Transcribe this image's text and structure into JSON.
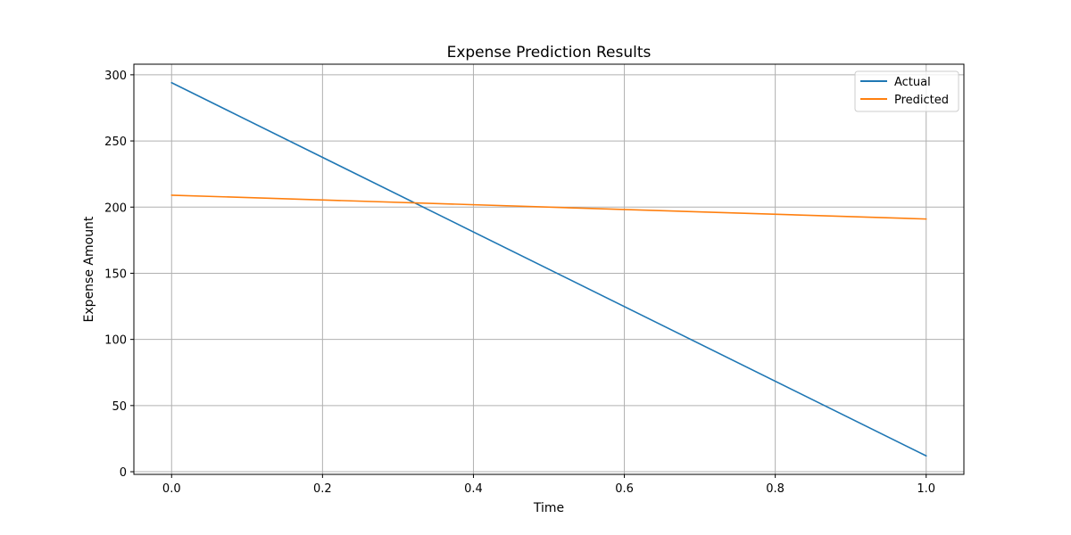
{
  "chart_data": {
    "type": "line",
    "title": "Expense Prediction Results",
    "xlabel": "Time",
    "ylabel": "Expense Amount",
    "xlim": [
      -0.05,
      1.05
    ],
    "ylim": [
      -2,
      308
    ],
    "xticks": [
      0.0,
      0.2,
      0.4,
      0.6,
      0.8,
      1.0
    ],
    "xtick_labels": [
      "0.0",
      "0.2",
      "0.4",
      "0.6",
      "0.8",
      "1.0"
    ],
    "yticks": [
      0,
      50,
      100,
      150,
      200,
      250,
      300
    ],
    "ytick_labels": [
      "0",
      "50",
      "100",
      "150",
      "200",
      "250",
      "300"
    ],
    "grid": true,
    "legend_position": "top-right",
    "series": [
      {
        "name": "Actual",
        "color": "#1f77b4",
        "x": [
          0.0,
          1.0
        ],
        "y": [
          294,
          12
        ]
      },
      {
        "name": "Predicted",
        "color": "#ff7f0e",
        "x": [
          0.0,
          1.0
        ],
        "y": [
          209,
          191
        ]
      }
    ]
  }
}
